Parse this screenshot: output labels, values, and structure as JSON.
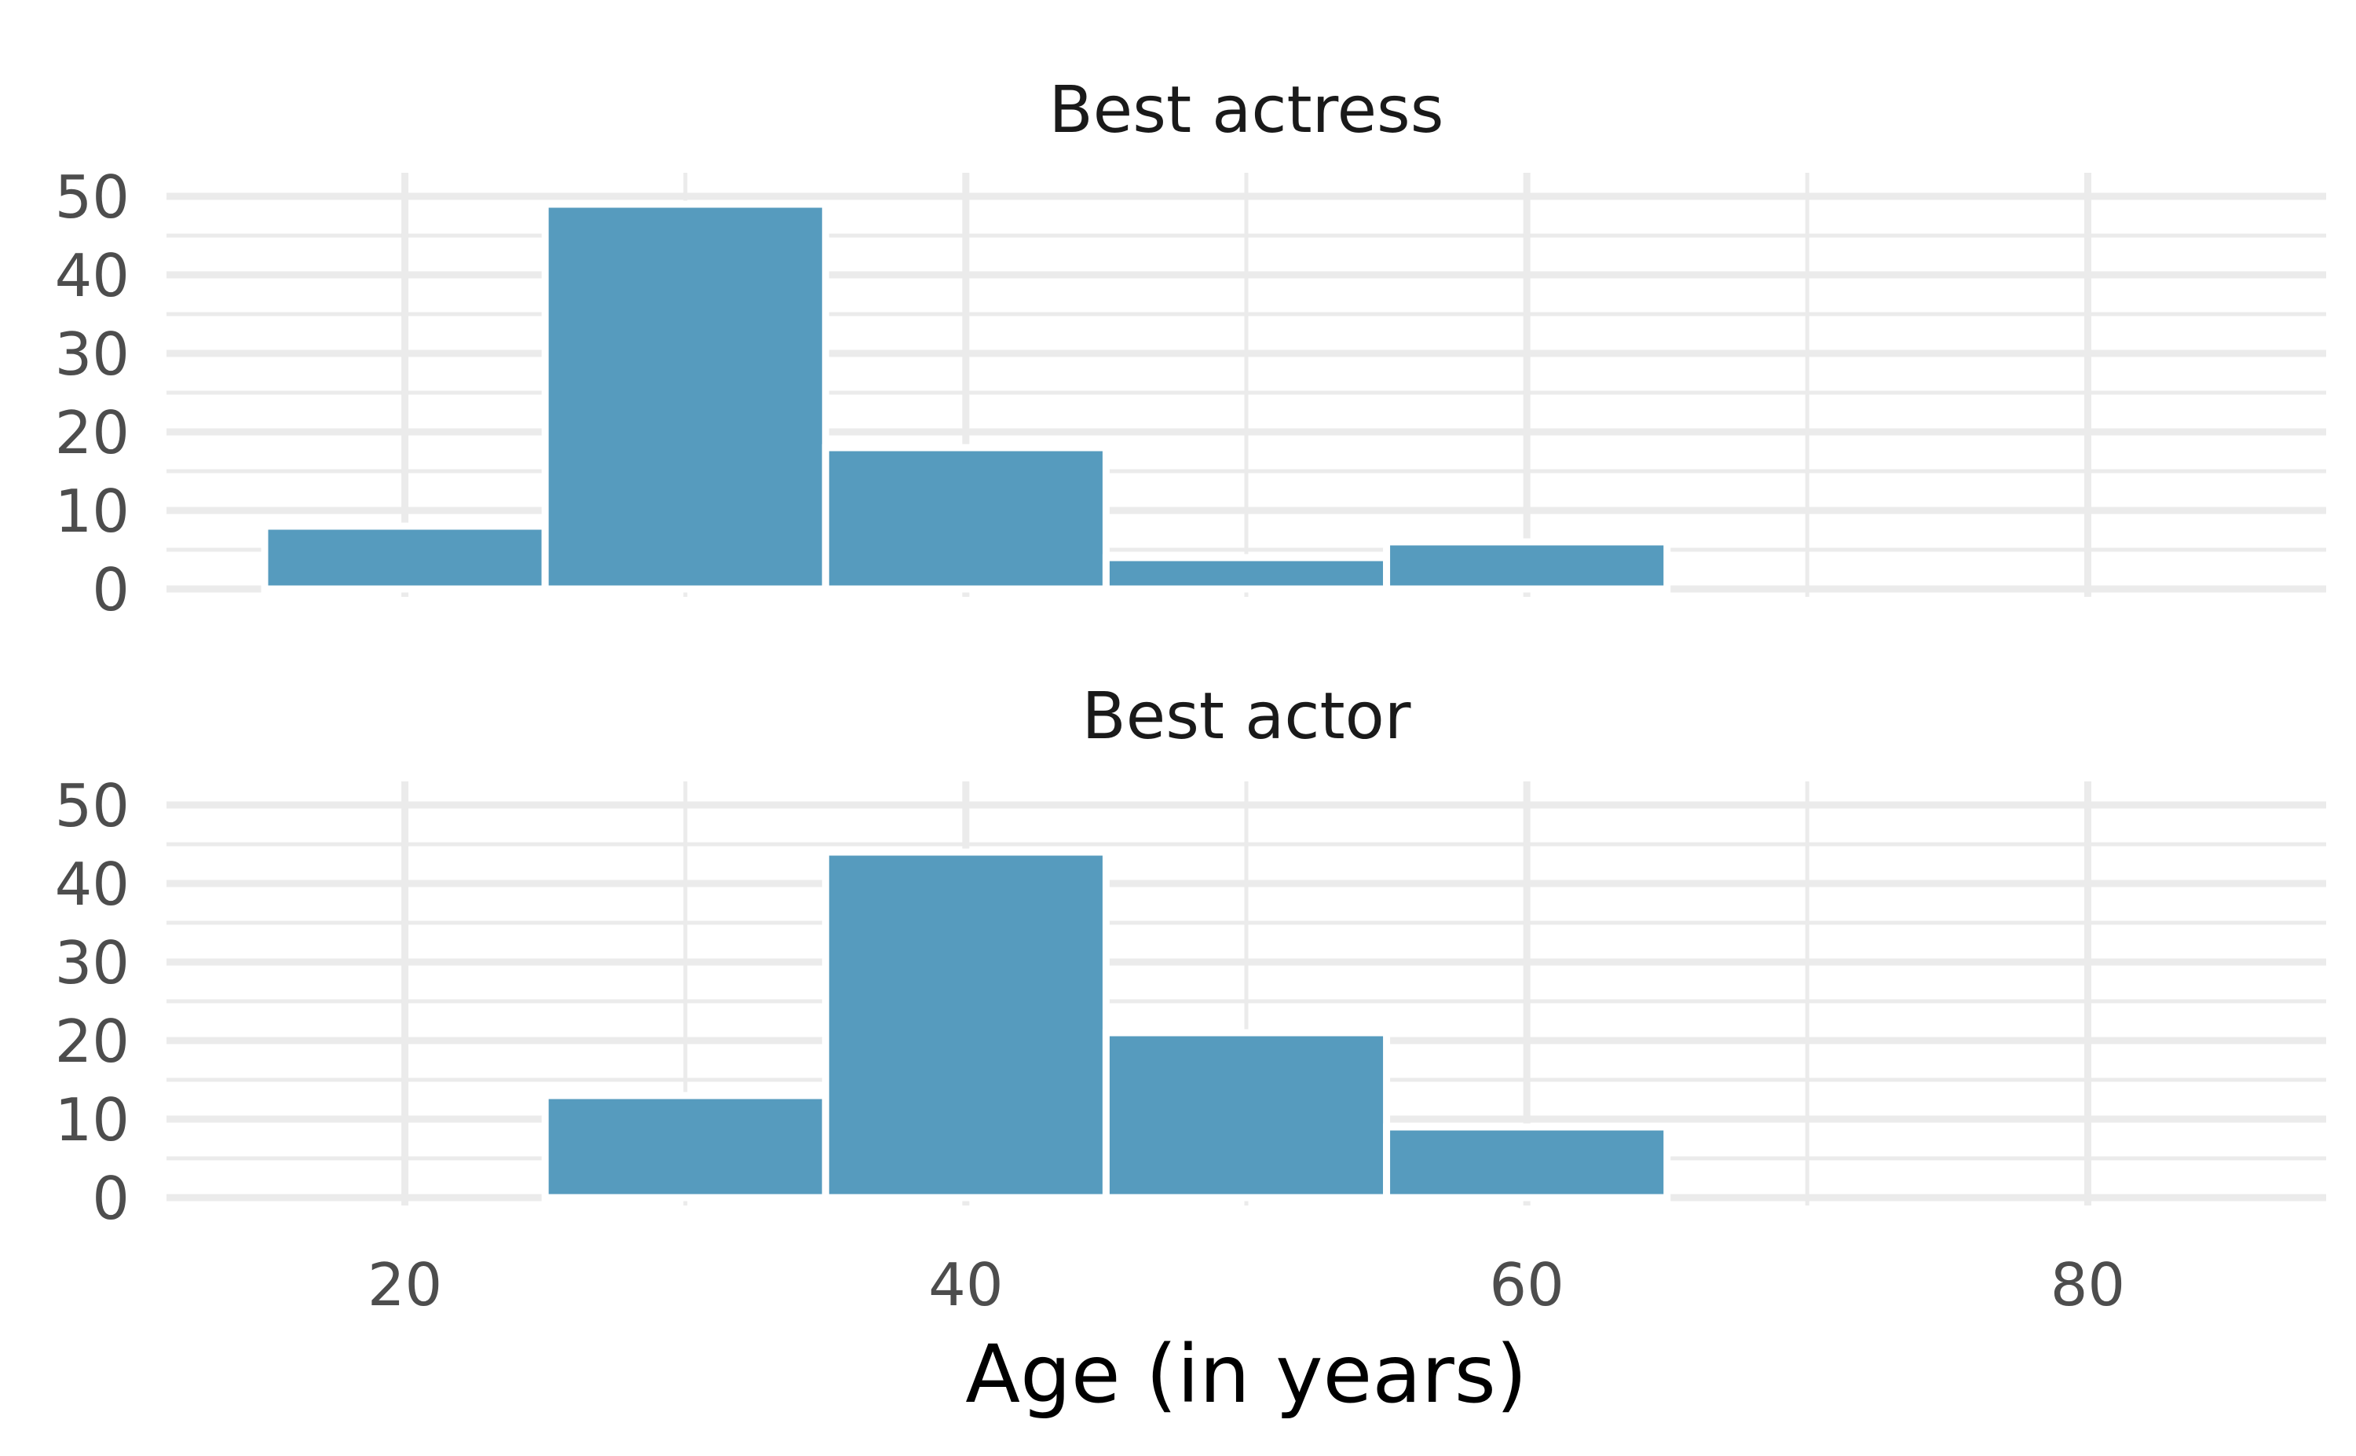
{
  "chart_data": {
    "type": "bar",
    "xlabel": "Age (in years)",
    "ylabel": "",
    "xlim": [
      11.5,
      88.5
    ],
    "ylim": [
      0,
      52
    ],
    "x_ticks": [
      20,
      40,
      60,
      80
    ],
    "y_ticks": [
      0,
      10,
      20,
      30,
      40,
      50
    ],
    "bin_width": 10,
    "grid": true,
    "colors": {
      "bar": "#569bbe",
      "grid": "#ebebeb",
      "tick_text": "#4d4d4d"
    },
    "panels": [
      {
        "title": "Best actress",
        "bins": [
          {
            "x0": 15,
            "x1": 25,
            "count": 8
          },
          {
            "x0": 25,
            "x1": 35,
            "count": 49
          },
          {
            "x0": 35,
            "x1": 45,
            "count": 18
          },
          {
            "x0": 45,
            "x1": 55,
            "count": 4
          },
          {
            "x0": 55,
            "x1": 65,
            "count": 6
          },
          {
            "x0": 65,
            "x1": 75,
            "count": 0
          },
          {
            "x0": 75,
            "x1": 85,
            "count": 0
          }
        ]
      },
      {
        "title": "Best actor",
        "bins": [
          {
            "x0": 15,
            "x1": 25,
            "count": 0
          },
          {
            "x0": 25,
            "x1": 35,
            "count": 13
          },
          {
            "x0": 35,
            "x1": 45,
            "count": 44
          },
          {
            "x0": 45,
            "x1": 55,
            "count": 21
          },
          {
            "x0": 55,
            "x1": 65,
            "count": 9
          },
          {
            "x0": 65,
            "x1": 75,
            "count": 0
          },
          {
            "x0": 75,
            "x1": 85,
            "count": 0
          }
        ]
      }
    ]
  }
}
